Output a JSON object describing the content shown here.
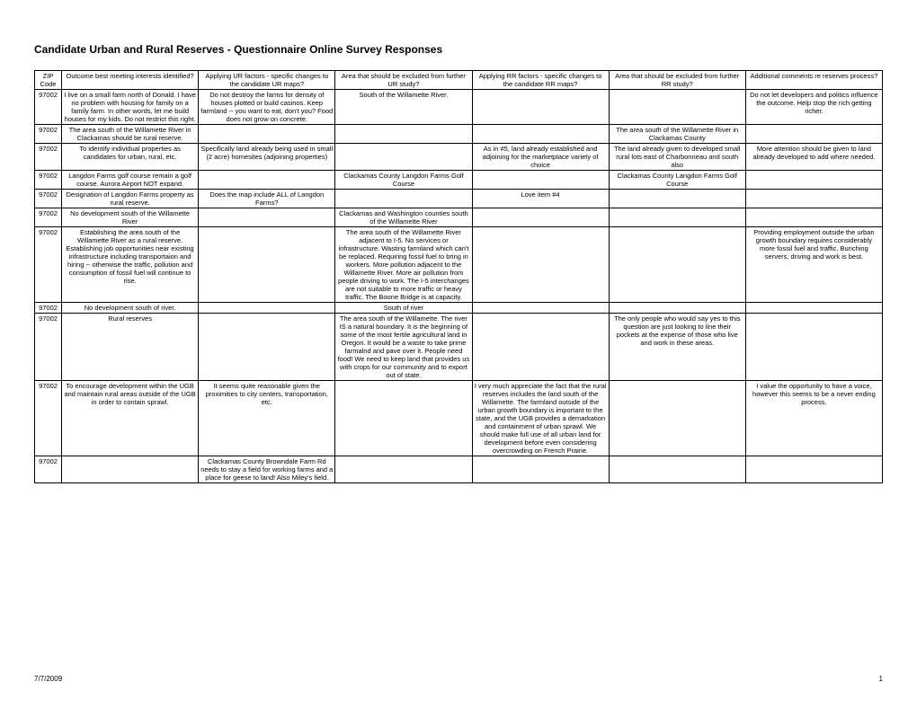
{
  "title": "Candidate Urban and Rural Reserves - Questionnaire Online Survey Responses",
  "footer_date": "7/7/2009",
  "footer_page": "1",
  "columns": [
    "ZIP Code",
    "Outcome best meeting interests identified?",
    "Applying UR factors - specific changes to the candidate UR maps?",
    "Area that should be excluded from further UR study?",
    "Applying RR factors - specific changes to the candidate RR maps?",
    "Area that should be excluded from further RR study?",
    "Additional comments re reserves process?"
  ],
  "rows": [
    {
      "zip": "97002",
      "c1": "I live on a small farm north of Donald. I have no problem with housing for family on a family farm.  In other words, let me build houses for my kids.  Do not restrict this right.",
      "c2": "Do not destroy the farms for density of houses plotted or build casinos.  Keep farmland -- you want to eat, don't you? Food does not grow on concrete.",
      "c3": "South of the Willamette River.",
      "c4": "",
      "c5": "",
      "c6": "Do not let developers and politics influence the outcome.  Help stop the rich getting richer."
    },
    {
      "zip": "97002",
      "c1": "The area south of the Willamette River in Clackamas should be rural reserve.",
      "c2": "",
      "c3": "",
      "c4": "",
      "c5": "The area south of the Willamette River in Clackamas County",
      "c6": ""
    },
    {
      "zip": "97002",
      "c1": "To identify individual properties as candidates for urban, rural, etc.",
      "c2": "Specifically land already being used in small (2 acre) homesites (adjoining properties)",
      "c3": "",
      "c4": "As in #5, land already established and adjoining for the marketplace variety of choice",
      "c5": "The land already given to developed small rural lots east of Charbonneau and south also",
      "c6": "More attention should be given to land already developed to add where needed."
    },
    {
      "zip": "97002",
      "c1": "Langdon Farms golf course remain a golf course.  Aurora Airport NOT expand.",
      "c2": "",
      "c3": "Clackamas County Langdon Farms Golf Course",
      "c4": "",
      "c5": "Clackamas County Langdon Farms Golf Course",
      "c6": ""
    },
    {
      "zip": "97002",
      "c1": "Designation of Langdon Farms property as rural reserve.",
      "c2": "Does the map include ALL of Langdon Farms?",
      "c3": "",
      "c4": "Love item #4",
      "c5": "",
      "c6": ""
    },
    {
      "zip": "97002",
      "c1": "No development south of the Willamette River",
      "c2": "",
      "c3": "Clackamas and Washington counties south of the Willamette River",
      "c4": "",
      "c5": "",
      "c6": ""
    },
    {
      "zip": "97002",
      "c1": "Establishing the area south of the Willamette River as a rural reserve. Establishing job opportunities near existing infrastructure including transportaion and hiring -- otherwise the traffic, pollution and consumption of fossil fuel will continue to rise.",
      "c2": "",
      "c3": "The area south of the Willamette River adjacent to I-5.  No services or infrastructure.  Wasting farmland which can't be replaced.  Requiring fossil fuel to bring in workers.  More pollution adjacent to the Willamette River.  More air pollution from people driving to work.  The I-5 interchanges are not suitable to more traffic or heavy traffic.  The Boone Bridge is at capacity.",
      "c4": "",
      "c5": "",
      "c6": "Providing employment outside the urban growth boundary requires considerably more fossil fuel and traffic.  Bunching servers, driving and work is best."
    },
    {
      "zip": "97002",
      "c1": "No development south of river.",
      "c2": "",
      "c3": "South of river",
      "c4": "",
      "c5": "",
      "c6": ""
    },
    {
      "zip": "97002",
      "c1": "Rural reserves",
      "c2": "",
      "c3": "The area south of the Willamette.  The river IS a natural boundary.  It is the beginning of some of the most fertile agricultural land in Oregon.  It would be a waste to take prime farmalnd and pave over it.  People need food!  We need to keep land that provides us with crops for our community and to export out of state.",
      "c4": "",
      "c5": "The only people who would say yes to this question are just looking to line their pockets at the expense of those who live and work in these areas.",
      "c6": ""
    },
    {
      "zip": "97002",
      "c1": "To encourage development within the UGB and maintain rural areas outside of the UGB in order to contain sprawl.",
      "c2": "It seems quite reasonable given the proximities to city centers, transportation, etc.",
      "c3": "",
      "c4": "I very much appreciate the fact that the rural reserves includes the land south of the Willamette.  The farmland outside of the urban growth boundary is important to the state, and the UGB provides a demarkation and containment of urban sprawl.  We should make full use of all urban land for development before even considering overcrowding on French Prairie.",
      "c5": "",
      "c6": "I value the opportunity to have a voice, however this seems to be a never ending process."
    },
    {
      "zip": "97002",
      "c1": "",
      "c2": "Clackamas County Browndale Farm Rd needs to stay a field for working farms and a place for geese to land!  Also Miley's field.",
      "c3": "",
      "c4": "",
      "c5": "",
      "c6": ""
    }
  ]
}
